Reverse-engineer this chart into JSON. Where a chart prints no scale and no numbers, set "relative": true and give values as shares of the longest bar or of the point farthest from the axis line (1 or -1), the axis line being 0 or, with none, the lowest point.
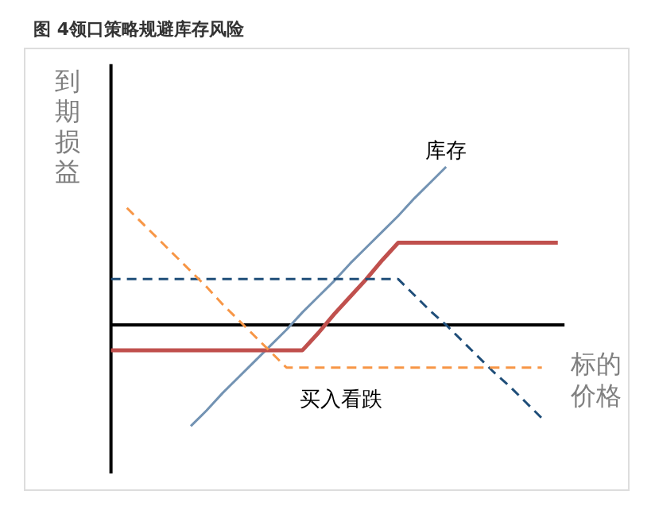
{
  "chart_data": {
    "type": "line",
    "relative": true,
    "title": "图 4领口策略规避库存风险",
    "ylabel": "到期损益",
    "xlabel": "标的价格",
    "grid": false,
    "categories": [
      null,
      null,
      null,
      null,
      null,
      null,
      null,
      null,
      null,
      null,
      null,
      null,
      null,
      null,
      null,
      null,
      null,
      null,
      null,
      null,
      null,
      null,
      null,
      null,
      null,
      null,
      null,
      null,
      null
    ],
    "series": [
      {
        "name": "库存",
        "color": "#7393b3",
        "line_style": "solid",
        "values": [
          null,
          null,
          null,
          null,
          null,
          -0.64,
          -0.54,
          -0.43,
          -0.33,
          -0.23,
          -0.13,
          -0.03,
          0.08,
          0.18,
          0.28,
          0.39,
          0.49,
          0.59,
          0.69,
          0.8,
          0.9,
          1.0,
          null,
          null,
          null,
          null,
          null,
          null,
          null
        ]
      },
      {
        "color": "#c0504d",
        "line_style": "solid",
        "values": [
          -0.16,
          -0.16,
          -0.16,
          -0.16,
          -0.16,
          -0.16,
          -0.16,
          -0.16,
          -0.16,
          -0.16,
          -0.16,
          -0.16,
          -0.16,
          -0.05,
          0.07,
          0.18,
          0.29,
          0.41,
          0.52,
          0.52,
          0.52,
          0.52,
          0.52,
          0.52,
          0.52,
          0.52,
          0.52,
          0.52,
          0.52
        ]
      },
      {
        "color": "#1f4e79",
        "line_style": "dashed",
        "values": [
          0.29,
          0.29,
          0.29,
          0.29,
          0.29,
          0.29,
          0.29,
          0.29,
          0.29,
          0.29,
          0.29,
          0.29,
          0.29,
          0.29,
          0.29,
          0.29,
          0.29,
          0.29,
          0.29,
          0.19,
          0.09,
          0,
          -0.1,
          -0.2,
          -0.3,
          -0.39,
          -0.49,
          -0.59,
          null
        ]
      },
      {
        "name": "买入看跌",
        "color": "#f79646",
        "line_style": "dashed",
        "values": [
          null,
          0.74,
          0.64,
          0.54,
          0.44,
          0.34,
          0.24,
          0.13,
          0.03,
          -0.07,
          -0.17,
          -0.27,
          -0.27,
          -0.27,
          -0.27,
          -0.27,
          -0.27,
          -0.27,
          -0.27,
          -0.27,
          -0.27,
          -0.27,
          -0.27,
          -0.27,
          -0.27,
          -0.27,
          -0.27,
          -0.27,
          null
        ]
      }
    ]
  }
}
